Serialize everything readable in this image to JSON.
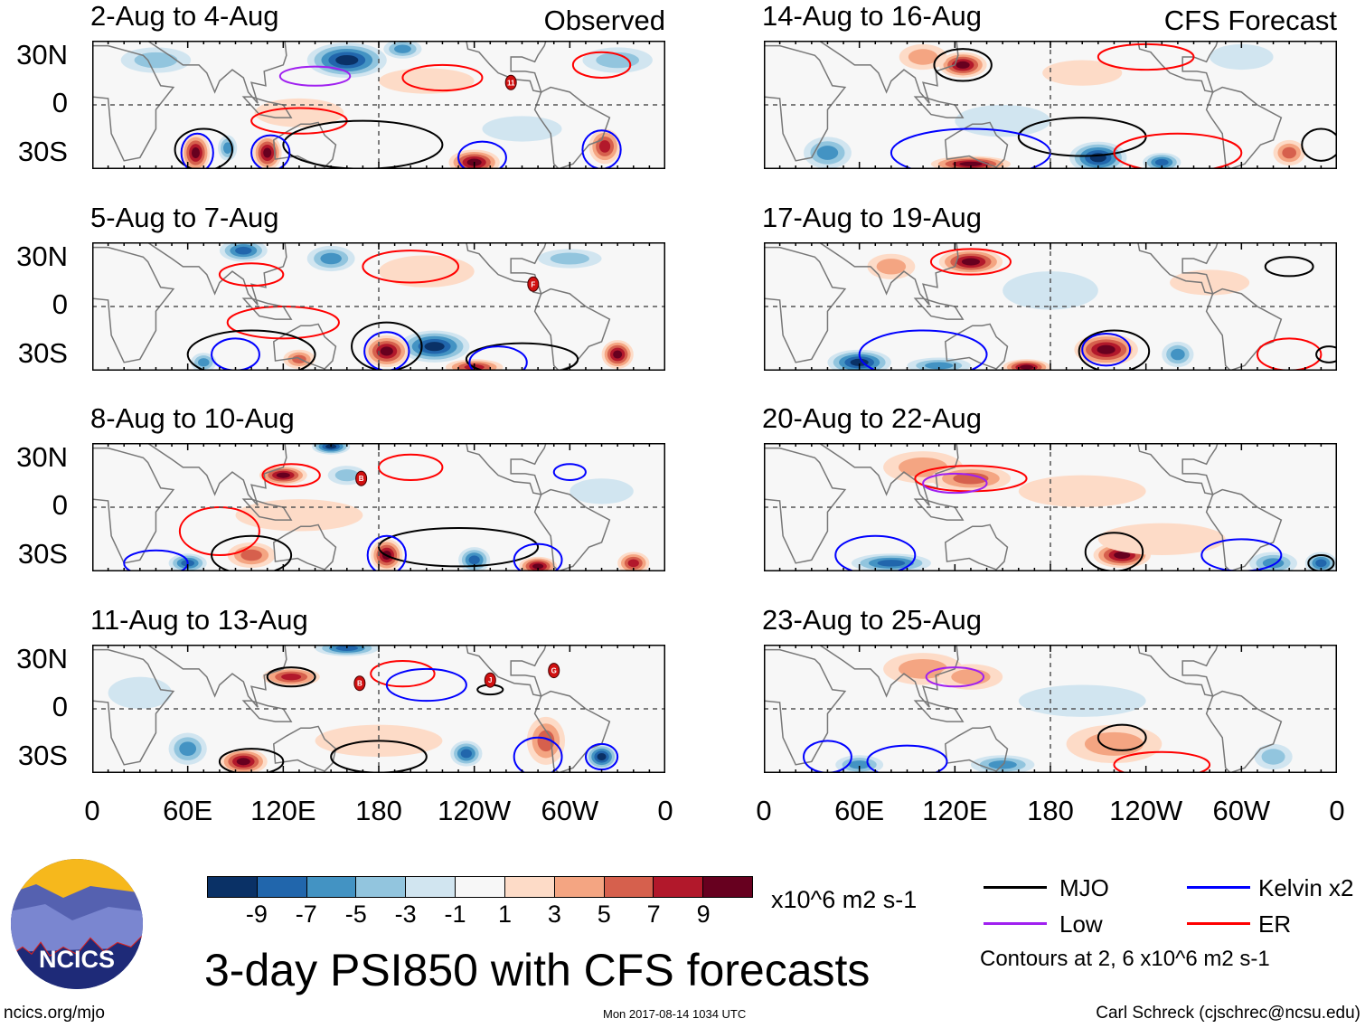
{
  "panels": [
    {
      "title": "2-Aug to 4-Aug",
      "label": "Observed",
      "storms": [
        "11"
      ]
    },
    {
      "title": "5-Aug to 7-Aug",
      "storms": [
        "F"
      ]
    },
    {
      "title": "8-Aug to 10-Aug",
      "storms": [
        "B"
      ]
    },
    {
      "title": "11-Aug to 13-Aug",
      "storms": [
        "B",
        "J",
        "G"
      ]
    },
    {
      "title": "14-Aug to 16-Aug",
      "label": "CFS Forecast",
      "storms": []
    },
    {
      "title": "17-Aug to 19-Aug",
      "storms": []
    },
    {
      "title": "20-Aug to 22-Aug",
      "storms": []
    },
    {
      "title": "23-Aug to 25-Aug",
      "storms": []
    }
  ],
  "lat_labels": [
    "30N",
    "0",
    "30S"
  ],
  "lon_labels": [
    "0",
    "60E",
    "120E",
    "180",
    "120W",
    "60W",
    "0"
  ],
  "colorbar": {
    "colors": [
      "#0a3166",
      "#2166ac",
      "#4393c3",
      "#92c5de",
      "#d1e5f0",
      "#f7f7f7",
      "#fddbc7",
      "#f4a582",
      "#d6604d",
      "#b2182b",
      "#67001f"
    ],
    "labels": [
      "-9",
      "-7",
      "-5",
      "-3",
      "-1",
      "1",
      "3",
      "5",
      "7",
      "9"
    ],
    "units": "x10^6 m2 s-1"
  },
  "legend": {
    "items": [
      {
        "label": "MJO",
        "color": "#000000"
      },
      {
        "label": "Kelvin x2",
        "color": "#0000ff"
      },
      {
        "label": "Low",
        "color": "#a020f0"
      },
      {
        "label": "ER",
        "color": "#ff0000"
      }
    ],
    "note": "Contours at 2, 6 x10^6 m2 s-1"
  },
  "title": "3-day PSI850 with CFS forecasts",
  "footer": {
    "left": "ncics.org/mjo",
    "center": "Mon 2017-08-14 1034 UTC",
    "right": "Carl Schreck (cjschrec@ncsu.edu)"
  },
  "logo": {
    "text": "NCICS"
  }
}
